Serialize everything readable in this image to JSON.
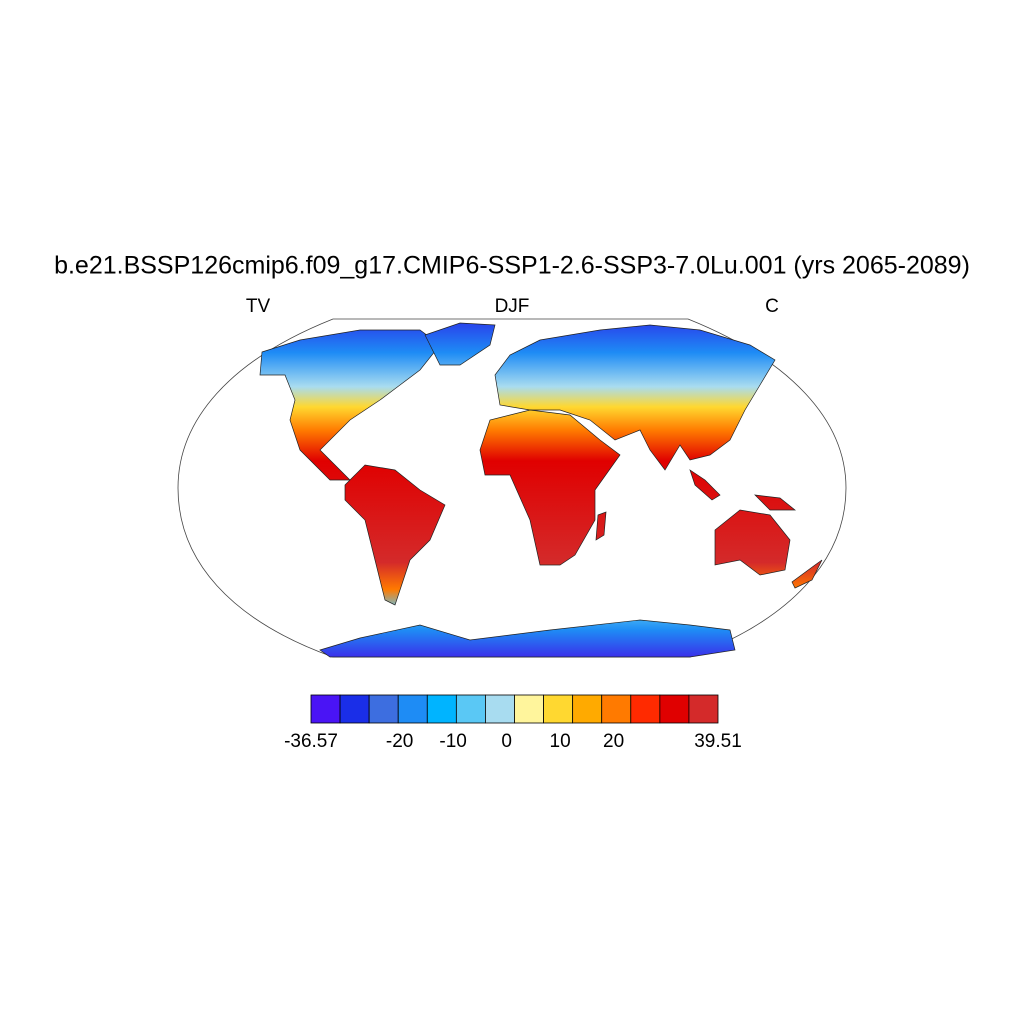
{
  "title": "b.e21.BSSP126cmip6.f09_g17.CMIP6-SSP1-2.6-SSP3-7.0Lu.001 (yrs 2065-2089)",
  "left_label": "TV",
  "center_label": "DJF",
  "right_label": "C",
  "colorbar": {
    "colors": [
      "#4a14f5",
      "#1a2ee8",
      "#3d6ee0",
      "#1e8cf5",
      "#00b4ff",
      "#5ac8f5",
      "#a8dcf0",
      "#fff59c",
      "#ffd830",
      "#ffaa00",
      "#ff7a00",
      "#ff2a00",
      "#e00000",
      "#d42a2a"
    ],
    "ticks": [
      -36.57,
      -20,
      -10,
      0,
      10,
      20,
      39.51
    ]
  }
}
